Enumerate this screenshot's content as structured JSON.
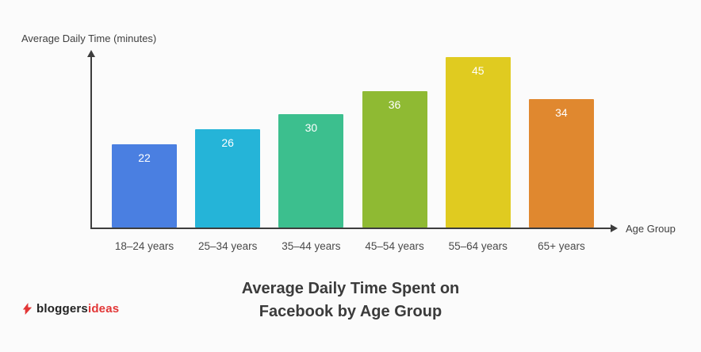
{
  "chart_data": {
    "type": "bar",
    "title": "Average Daily Time Spent on Facebook by Age Group",
    "y_axis_label": "Average Daily Time (minutes)",
    "x_axis_label": "Age Group",
    "categories": [
      "18–24 years",
      "25–34 years",
      "35–44 years",
      "45–54 years",
      "55–64 years",
      "65+ years"
    ],
    "values": [
      22,
      26,
      30,
      36,
      45,
      34
    ],
    "bar_colors": [
      "#4a7fe1",
      "#25b4d8",
      "#3cbf8e",
      "#8fba33",
      "#e0cb20",
      "#e0882f"
    ],
    "ylim": [
      0,
      45
    ],
    "grid": false,
    "legend": "none",
    "value_label_position": "inside-top"
  },
  "title": {
    "line1": "Average Daily Time Spent on",
    "line2": "Facebook by Age Group"
  },
  "logo": {
    "text_dark": "bloggers",
    "text_red": "ideas",
    "accent_color": "#e23636"
  }
}
